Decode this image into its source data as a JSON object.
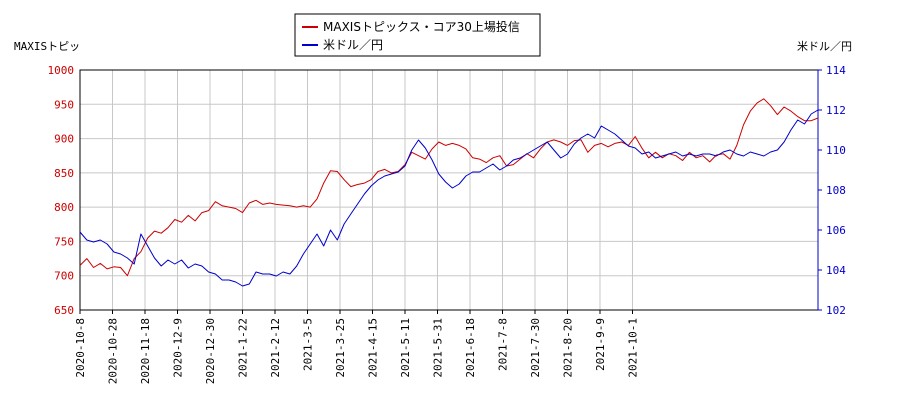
{
  "chart_data": {
    "type": "line",
    "left_axis_label": "MAXISトピッ",
    "right_axis_label": "米ドル／円",
    "legend_placement": "top-center",
    "grid": true,
    "ylim_left": [
      650,
      1000
    ],
    "ylim_right": [
      102,
      114
    ],
    "yticks_left": [
      "650",
      "700",
      "750",
      "800",
      "850",
      "900",
      "950",
      "1000"
    ],
    "yticks_right": [
      "102",
      "104",
      "106",
      "108",
      "110",
      "112",
      "114"
    ],
    "x_ticks": [
      "2020-10-8",
      "2020-10-28",
      "2020-11-18",
      "2020-12-9",
      "2020-12-30",
      "2021-1-22",
      "2021-2-12",
      "2021-3-5",
      "2021-3-25",
      "2021-4-15",
      "2021-5-11",
      "2021-5-31",
      "2021-6-18",
      "2021-7-8",
      "2021-7-30",
      "2021-8-20",
      "2021-9-9",
      "2021-10-1"
    ],
    "series": [
      {
        "name": "MAXISトピックス・コア30上場投信",
        "color": "#cc0000",
        "axis": "left",
        "points": [
          [
            0,
            715
          ],
          [
            3,
            725
          ],
          [
            6,
            712
          ],
          [
            9,
            718
          ],
          [
            12,
            710
          ],
          [
            15,
            713
          ],
          [
            18,
            712
          ],
          [
            21,
            700
          ],
          [
            24,
            725
          ],
          [
            27,
            735
          ],
          [
            30,
            755
          ],
          [
            33,
            765
          ],
          [
            36,
            762
          ],
          [
            39,
            770
          ],
          [
            42,
            782
          ],
          [
            45,
            778
          ],
          [
            48,
            788
          ],
          [
            51,
            780
          ],
          [
            54,
            792
          ],
          [
            57,
            795
          ],
          [
            60,
            808
          ],
          [
            63,
            802
          ],
          [
            66,
            800
          ],
          [
            69,
            798
          ],
          [
            72,
            792
          ],
          [
            75,
            806
          ],
          [
            78,
            810
          ],
          [
            81,
            804
          ],
          [
            84,
            806
          ],
          [
            87,
            804
          ],
          [
            90,
            803
          ],
          [
            93,
            802
          ],
          [
            96,
            800
          ],
          [
            99,
            802
          ],
          [
            102,
            800
          ],
          [
            105,
            812
          ],
          [
            108,
            835
          ],
          [
            111,
            853
          ],
          [
            114,
            852
          ],
          [
            117,
            840
          ],
          [
            120,
            830
          ],
          [
            123,
            833
          ],
          [
            126,
            835
          ],
          [
            129,
            840
          ],
          [
            132,
            852
          ],
          [
            135,
            855
          ],
          [
            138,
            850
          ],
          [
            141,
            852
          ],
          [
            144,
            862
          ],
          [
            147,
            880
          ],
          [
            150,
            875
          ],
          [
            153,
            870
          ],
          [
            156,
            885
          ],
          [
            159,
            895
          ],
          [
            162,
            890
          ],
          [
            165,
            893
          ],
          [
            168,
            890
          ],
          [
            171,
            885
          ],
          [
            174,
            872
          ],
          [
            177,
            870
          ],
          [
            180,
            865
          ],
          [
            183,
            872
          ],
          [
            186,
            875
          ],
          [
            189,
            860
          ],
          [
            192,
            862
          ],
          [
            195,
            870
          ],
          [
            198,
            878
          ],
          [
            201,
            872
          ],
          [
            204,
            885
          ],
          [
            207,
            895
          ],
          [
            210,
            898
          ],
          [
            213,
            895
          ],
          [
            216,
            890
          ],
          [
            219,
            897
          ],
          [
            222,
            898
          ],
          [
            225,
            880
          ],
          [
            228,
            890
          ],
          [
            231,
            893
          ],
          [
            234,
            888
          ],
          [
            237,
            893
          ],
          [
            240,
            895
          ],
          [
            243,
            890
          ],
          [
            246,
            903
          ],
          [
            249,
            886
          ],
          [
            252,
            872
          ],
          [
            255,
            880
          ],
          [
            258,
            872
          ],
          [
            261,
            878
          ],
          [
            264,
            875
          ],
          [
            267,
            868
          ],
          [
            270,
            880
          ],
          [
            273,
            872
          ],
          [
            276,
            875
          ],
          [
            279,
            866
          ],
          [
            282,
            876
          ],
          [
            285,
            878
          ],
          [
            288,
            870
          ],
          [
            291,
            890
          ],
          [
            294,
            920
          ],
          [
            297,
            940
          ],
          [
            300,
            952
          ],
          [
            303,
            958
          ],
          [
            306,
            948
          ],
          [
            309,
            935
          ],
          [
            312,
            946
          ],
          [
            315,
            940
          ],
          [
            318,
            932
          ],
          [
            321,
            926
          ],
          [
            324,
            926
          ],
          [
            327,
            930
          ]
        ]
      },
      {
        "name": "米ドル／円",
        "color": "#0000cc",
        "axis": "right",
        "points": [
          [
            0,
            105.9
          ],
          [
            3,
            105.5
          ],
          [
            6,
            105.4
          ],
          [
            9,
            105.5
          ],
          [
            12,
            105.3
          ],
          [
            15,
            104.9
          ],
          [
            18,
            104.8
          ],
          [
            21,
            104.6
          ],
          [
            24,
            104.3
          ],
          [
            27,
            105.8
          ],
          [
            30,
            105.2
          ],
          [
            33,
            104.6
          ],
          [
            36,
            104.2
          ],
          [
            39,
            104.5
          ],
          [
            42,
            104.3
          ],
          [
            45,
            104.5
          ],
          [
            48,
            104.1
          ],
          [
            51,
            104.3
          ],
          [
            54,
            104.2
          ],
          [
            57,
            103.9
          ],
          [
            60,
            103.8
          ],
          [
            63,
            103.5
          ],
          [
            66,
            103.5
          ],
          [
            69,
            103.4
          ],
          [
            72,
            103.2
          ],
          [
            75,
            103.3
          ],
          [
            78,
            103.9
          ],
          [
            81,
            103.8
          ],
          [
            84,
            103.8
          ],
          [
            87,
            103.7
          ],
          [
            90,
            103.9
          ],
          [
            93,
            103.8
          ],
          [
            96,
            104.2
          ],
          [
            99,
            104.8
          ],
          [
            102,
            105.3
          ],
          [
            105,
            105.8
          ],
          [
            108,
            105.2
          ],
          [
            111,
            106.0
          ],
          [
            114,
            105.5
          ],
          [
            117,
            106.3
          ],
          [
            120,
            106.8
          ],
          [
            123,
            107.3
          ],
          [
            126,
            107.8
          ],
          [
            129,
            108.2
          ],
          [
            132,
            108.5
          ],
          [
            135,
            108.7
          ],
          [
            138,
            108.8
          ],
          [
            141,
            108.9
          ],
          [
            144,
            109.2
          ],
          [
            147,
            110.0
          ],
          [
            150,
            110.5
          ],
          [
            153,
            110.1
          ],
          [
            156,
            109.5
          ],
          [
            159,
            108.8
          ],
          [
            162,
            108.4
          ],
          [
            165,
            108.1
          ],
          [
            168,
            108.3
          ],
          [
            171,
            108.7
          ],
          [
            174,
            108.9
          ],
          [
            177,
            108.9
          ],
          [
            180,
            109.1
          ],
          [
            183,
            109.3
          ],
          [
            186,
            109.0
          ],
          [
            189,
            109.2
          ],
          [
            192,
            109.5
          ],
          [
            195,
            109.6
          ],
          [
            198,
            109.8
          ],
          [
            201,
            110.0
          ],
          [
            204,
            110.2
          ],
          [
            207,
            110.4
          ],
          [
            210,
            110.0
          ],
          [
            213,
            109.6
          ],
          [
            216,
            109.8
          ],
          [
            219,
            110.3
          ],
          [
            222,
            110.6
          ],
          [
            225,
            110.8
          ],
          [
            228,
            110.6
          ],
          [
            231,
            111.2
          ],
          [
            234,
            111.0
          ],
          [
            237,
            110.8
          ],
          [
            240,
            110.5
          ],
          [
            243,
            110.2
          ],
          [
            246,
            110.1
          ],
          [
            249,
            109.8
          ],
          [
            252,
            109.9
          ],
          [
            255,
            109.6
          ],
          [
            258,
            109.7
          ],
          [
            261,
            109.8
          ],
          [
            264,
            109.9
          ],
          [
            267,
            109.7
          ],
          [
            270,
            109.8
          ],
          [
            273,
            109.7
          ],
          [
            276,
            109.8
          ],
          [
            279,
            109.8
          ],
          [
            282,
            109.7
          ],
          [
            285,
            109.9
          ],
          [
            288,
            110.0
          ],
          [
            291,
            109.8
          ],
          [
            294,
            109.7
          ],
          [
            297,
            109.9
          ],
          [
            300,
            109.8
          ],
          [
            303,
            109.7
          ],
          [
            306,
            109.9
          ],
          [
            309,
            110.0
          ],
          [
            312,
            110.4
          ],
          [
            315,
            111.0
          ],
          [
            318,
            111.5
          ],
          [
            321,
            111.3
          ],
          [
            324,
            111.8
          ],
          [
            327,
            112.0
          ]
        ]
      }
    ]
  }
}
